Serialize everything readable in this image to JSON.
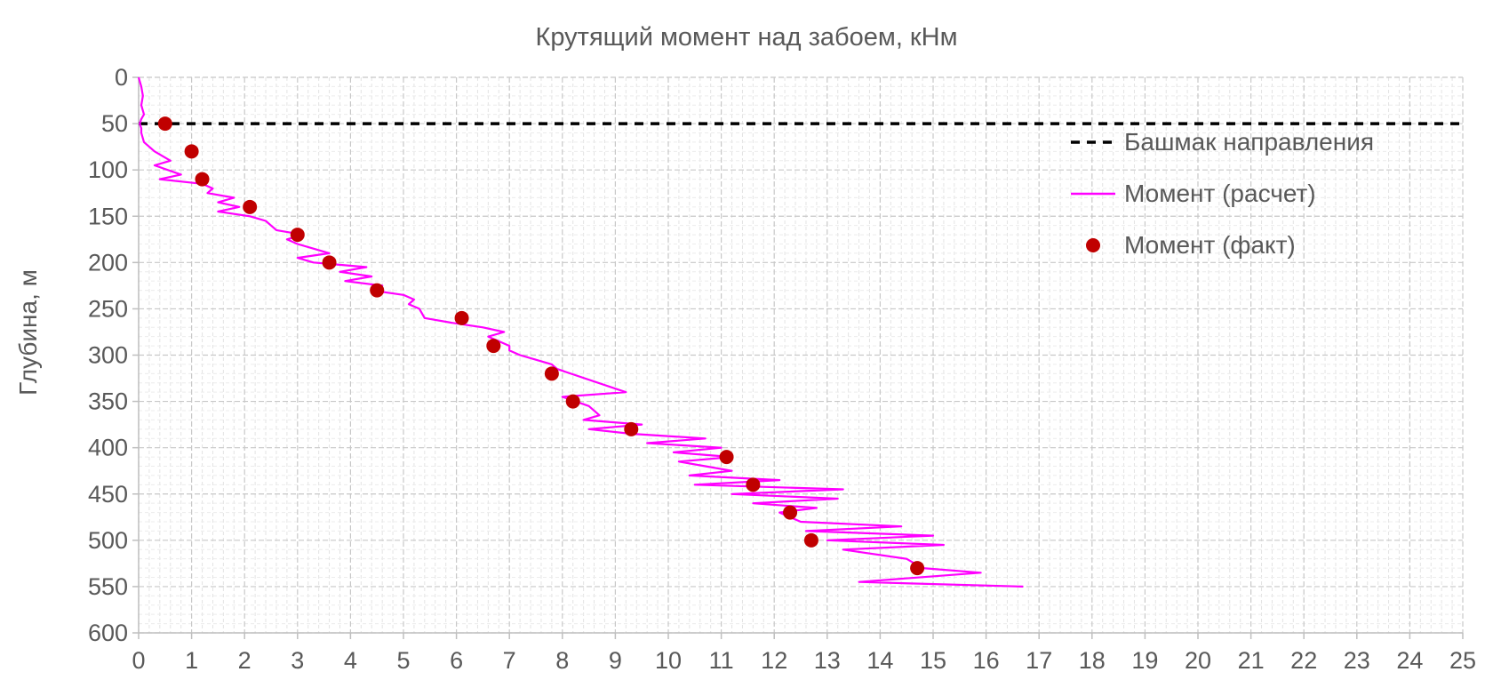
{
  "chart_data": {
    "type": "scatter",
    "title": "Крутящий момент над  забоем, кНм",
    "xlabel": "",
    "ylabel": "Глубина, м",
    "xlim": [
      0,
      25
    ],
    "ylim": [
      0,
      600
    ],
    "y_inverted": true,
    "x_axis_position": "bottom",
    "xticks": [
      0,
      1,
      2,
      3,
      4,
      5,
      6,
      7,
      8,
      9,
      10,
      11,
      12,
      13,
      14,
      15,
      16,
      17,
      18,
      19,
      20,
      21,
      22,
      23,
      24,
      25
    ],
    "yticks": [
      0,
      50,
      100,
      150,
      200,
      250,
      300,
      350,
      400,
      450,
      500,
      550,
      600
    ],
    "grid": "major and minor, dashed",
    "legend_position": "right, upper",
    "series": [
      {
        "name": "Башмак направления",
        "kind": "dashed-line",
        "color": "#000000",
        "x": [
          0,
          25
        ],
        "y": [
          50,
          50
        ]
      },
      {
        "name": "Момент (расчет)",
        "kind": "line",
        "color": "#FF00FF",
        "x": [
          0.0,
          0.05,
          0.08,
          0.05,
          0.1,
          0.05,
          0.02,
          0.05,
          0.05,
          0.1,
          0.3,
          0.6,
          0.3,
          0.8,
          0.4,
          1.2,
          1.4,
          1.3,
          1.8,
          1.5,
          1.9,
          1.5,
          2.1,
          2.4,
          2.5,
          2.6,
          3.1,
          2.8,
          3.0,
          3.3,
          3.6,
          3.0,
          3.3,
          4.3,
          3.8,
          4.4,
          3.9,
          4.6,
          4.4,
          5.0,
          5.2,
          5.1,
          5.3,
          5.4,
          5.9,
          6.5,
          6.9,
          6.6,
          6.8,
          7.0,
          7.0,
          7.2,
          7.5,
          7.8,
          7.9,
          9.2,
          8.0,
          8.5,
          8.7,
          8.4,
          9.5,
          8.5,
          9.3,
          10.7,
          9.6,
          11.0,
          10.1,
          11.2,
          10.2,
          10.7,
          11.2,
          10.4,
          12.1,
          10.5,
          13.3,
          11.2,
          13.2,
          11.6,
          12.8,
          12.1,
          12.5,
          14.4,
          12.6,
          15.0,
          13.0,
          15.2,
          13.3,
          14.5,
          14.8,
          15.9,
          13.6,
          16.7
        ],
        "y": [
          0,
          10,
          20,
          30,
          40,
          45,
          50,
          55,
          60,
          70,
          80,
          90,
          95,
          105,
          110,
          115,
          120,
          125,
          130,
          135,
          140,
          145,
          150,
          155,
          160,
          165,
          170,
          175,
          180,
          185,
          190,
          195,
          200,
          205,
          210,
          215,
          220,
          225,
          230,
          235,
          240,
          245,
          250,
          260,
          265,
          270,
          275,
          280,
          285,
          290,
          295,
          300,
          305,
          310,
          315,
          340,
          345,
          355,
          365,
          370,
          375,
          380,
          385,
          390,
          395,
          400,
          405,
          410,
          415,
          420,
          425,
          430,
          435,
          440,
          445,
          450,
          455,
          460,
          465,
          470,
          480,
          485,
          490,
          495,
          500,
          505,
          510,
          520,
          530,
          535,
          545,
          550
        ]
      },
      {
        "name": "Момент (факт)",
        "kind": "points",
        "color": "#C00000",
        "x": [
          0.5,
          1.0,
          1.2,
          2.1,
          3.0,
          3.6,
          4.5,
          6.1,
          6.7,
          7.8,
          8.2,
          9.3,
          11.1,
          11.6,
          12.3,
          12.7,
          14.7
        ],
        "y": [
          50,
          80,
          110,
          140,
          170,
          200,
          230,
          260,
          290,
          320,
          350,
          380,
          410,
          440,
          470,
          500,
          530
        ]
      }
    ]
  }
}
